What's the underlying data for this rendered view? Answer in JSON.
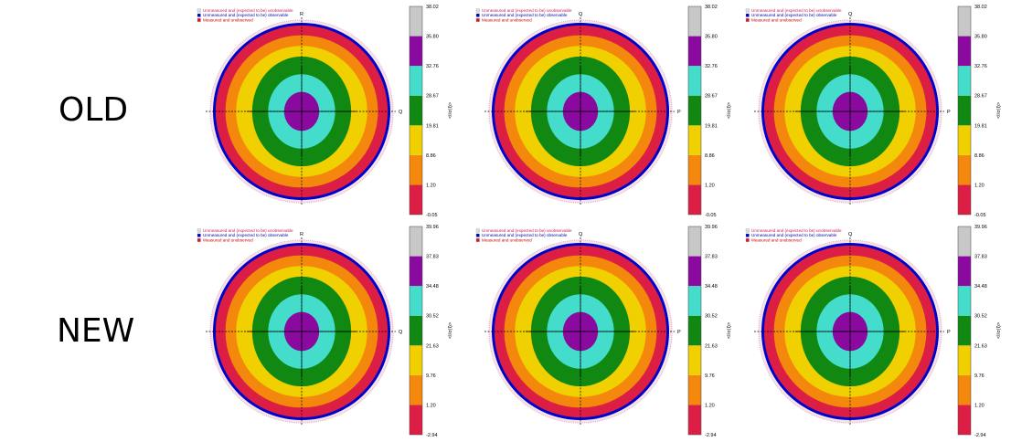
{
  "rows": [
    {
      "label": "OLD"
    },
    {
      "label": "NEW"
    }
  ],
  "legend_items": [
    {
      "text": "Unmeasured and (expected to be) unobservable",
      "text_color": "#cc2255",
      "swatch": "#dddddd"
    },
    {
      "text": "Unmeasured and (expected to be) observable",
      "text_color": "#0000aa",
      "swatch": "#0000cc"
    },
    {
      "text": "Measured and unobserved",
      "text_color": "#cc0000",
      "swatch": "#dd1133"
    }
  ],
  "colorbar_label": "<I/σ(I)>",
  "band_colors": [
    "#dc1e44",
    "#f4880c",
    "#f0d000",
    "#118811",
    "#44ddcc",
    "#8a0aa0",
    "#c8c8c8"
  ],
  "blue_color": "#0000cc",
  "chart_data": [
    {
      "type": "heatmap",
      "row": "OLD",
      "axes": [
        "R",
        "Q"
      ],
      "colorbar_ticks": [
        "38.02",
        "35.80",
        "32.76",
        "28.67",
        "19.81",
        "8.86",
        "1.20",
        "-0.05"
      ]
    },
    {
      "type": "heatmap",
      "row": "OLD",
      "axes": [
        "Q",
        "P"
      ],
      "colorbar_ticks": [
        "38.02",
        "35.80",
        "32.76",
        "28.67",
        "19.81",
        "8.86",
        "1.20",
        "-0.05"
      ]
    },
    {
      "type": "heatmap",
      "row": "OLD",
      "axes": [
        "Q",
        "P"
      ],
      "colorbar_ticks": [
        "38.02",
        "35.80",
        "32.76",
        "28.67",
        "19.81",
        "8.86",
        "1.20",
        "-0.05"
      ]
    },
    {
      "type": "heatmap",
      "row": "NEW",
      "axes": [
        "R",
        "Q"
      ],
      "colorbar_ticks": [
        "39.96",
        "37.83",
        "34.48",
        "30.52",
        "21.63",
        "9.76",
        "1.20",
        "-2.94"
      ]
    },
    {
      "type": "heatmap",
      "row": "NEW",
      "axes": [
        "Q",
        "P"
      ],
      "colorbar_ticks": [
        "39.96",
        "37.83",
        "34.48",
        "30.52",
        "21.63",
        "9.76",
        "1.20",
        "-2.94"
      ]
    },
    {
      "type": "heatmap",
      "row": "NEW",
      "axes": [
        "Q",
        "P"
      ],
      "colorbar_ticks": [
        "39.96",
        "37.83",
        "34.48",
        "30.52",
        "21.63",
        "9.76",
        "1.20",
        "-2.94"
      ]
    }
  ]
}
